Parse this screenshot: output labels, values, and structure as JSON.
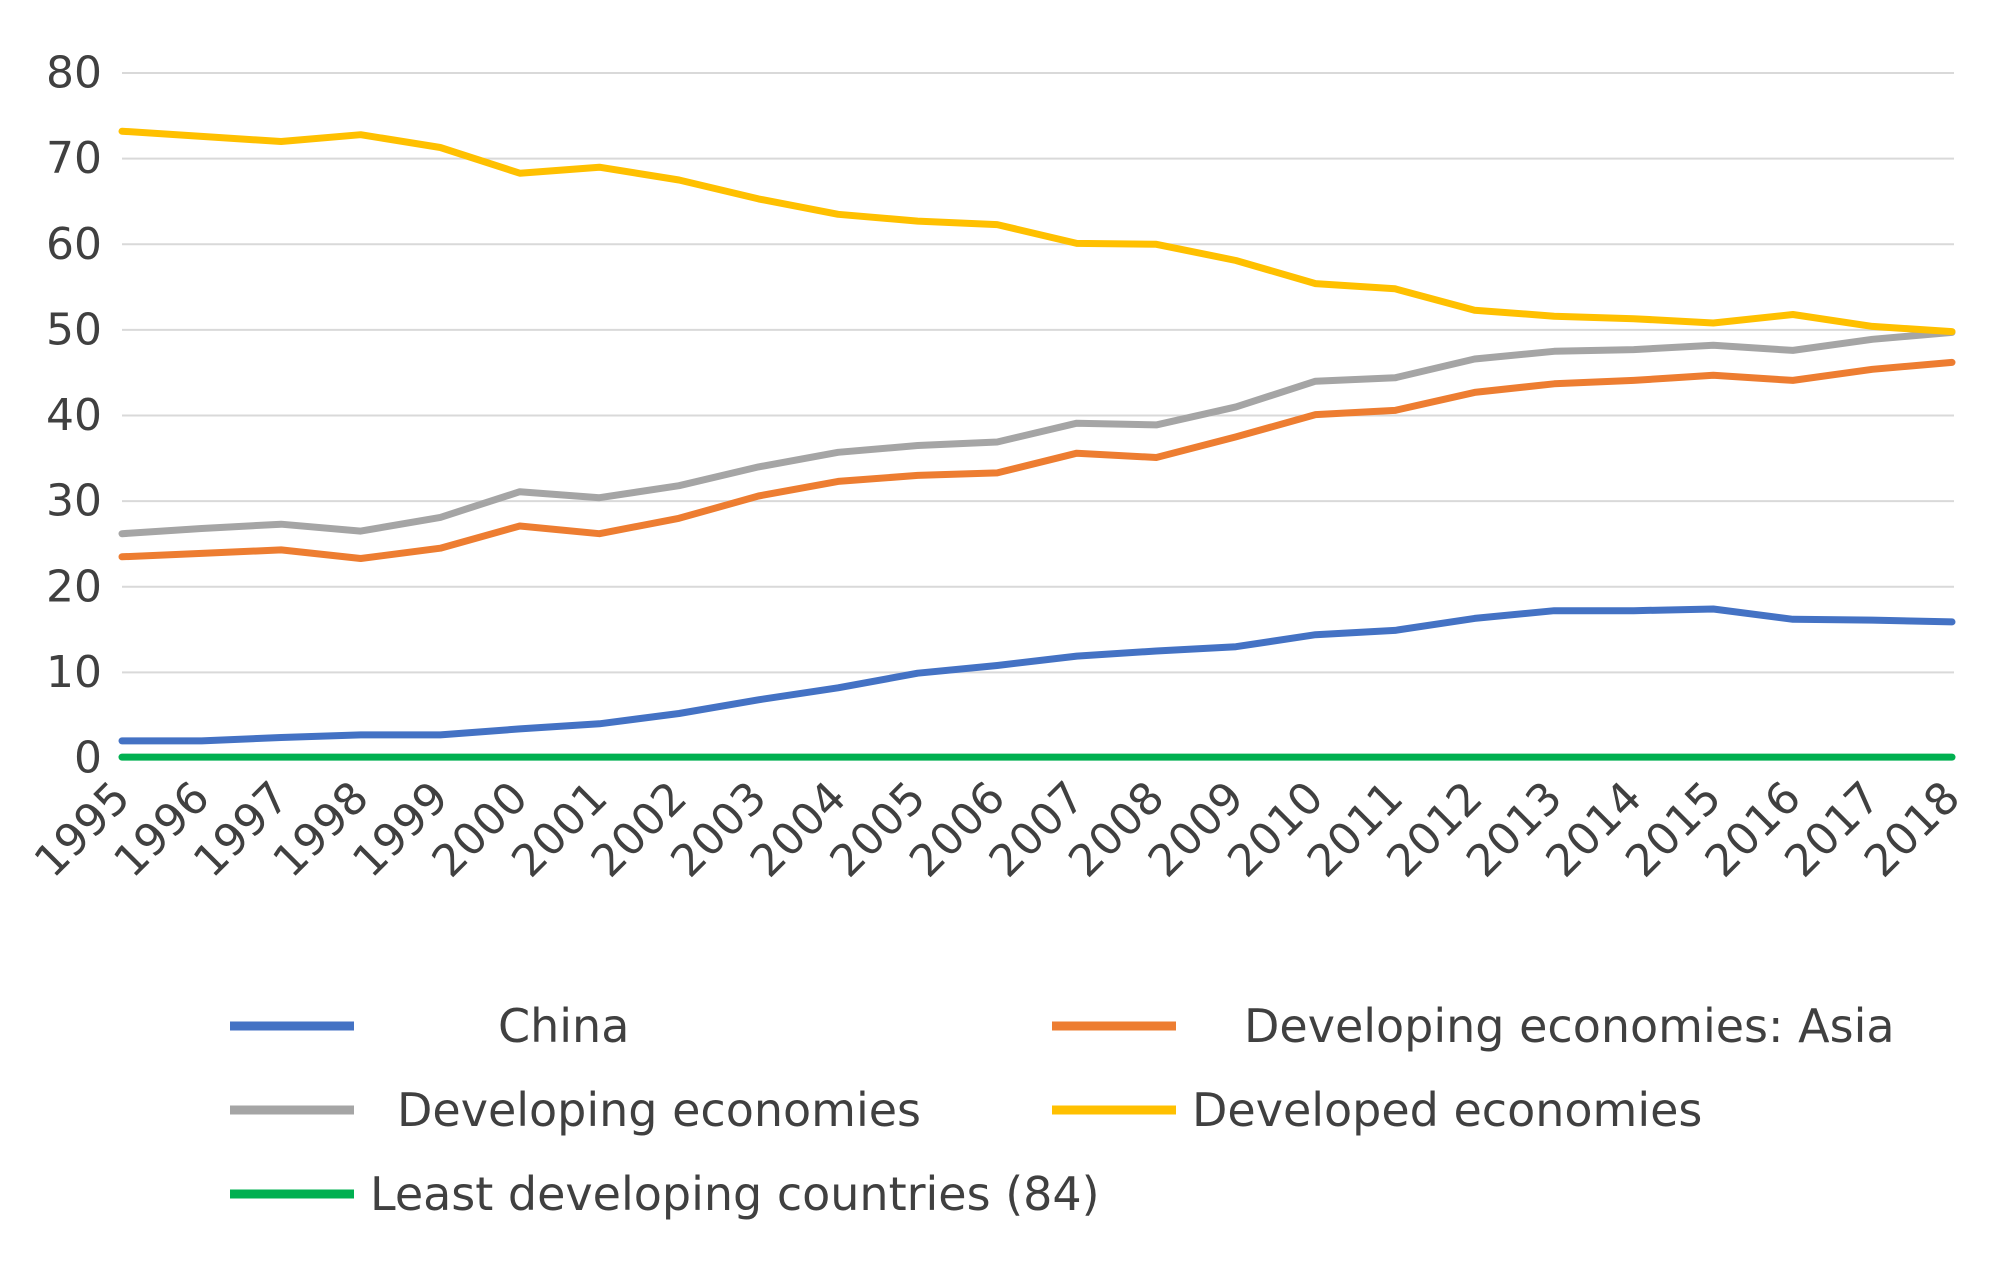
{
  "chart_data": {
    "type": "line",
    "title": "",
    "xlabel": "",
    "ylabel": "",
    "ylim": [
      0,
      80
    ],
    "yticks": [
      0,
      10,
      20,
      30,
      40,
      50,
      60,
      70,
      80
    ],
    "grid": true,
    "legend_position": "bottom",
    "categories": [
      "1995",
      "1996",
      "1997",
      "1998",
      "1999",
      "2000",
      "2001",
      "2002",
      "2003",
      "2004",
      "2005",
      "2006",
      "2007",
      "2008",
      "2009",
      "2010",
      "2011",
      "2012",
      "2013",
      "2014",
      "2015",
      "2016",
      "2017",
      "2018"
    ],
    "series": [
      {
        "name": "China",
        "color": "#4472C4",
        "values": [
          2.0,
          2.0,
          2.4,
          2.7,
          2.7,
          3.4,
          4.0,
          5.2,
          6.8,
          8.2,
          9.9,
          10.8,
          11.9,
          12.5,
          13.0,
          14.4,
          14.9,
          16.3,
          17.2,
          17.2,
          17.4,
          16.2,
          16.1,
          15.9
        ]
      },
      {
        "name": "Developing economies: Asia",
        "color": "#ED7D31",
        "values": [
          23.5,
          23.9,
          24.3,
          23.3,
          24.5,
          27.1,
          26.2,
          28.0,
          30.6,
          32.3,
          33.0,
          33.3,
          35.6,
          35.1,
          37.5,
          40.1,
          40.6,
          42.7,
          43.7,
          44.1,
          44.7,
          44.1,
          45.4,
          46.2
        ]
      },
      {
        "name": "Developing economies",
        "color": "#A5A5A5",
        "values": [
          26.2,
          26.8,
          27.3,
          26.5,
          28.1,
          31.1,
          30.4,
          31.8,
          34.0,
          35.7,
          36.5,
          36.9,
          39.1,
          38.9,
          41.0,
          44.0,
          44.4,
          46.6,
          47.5,
          47.7,
          48.2,
          47.6,
          48.9,
          49.7
        ]
      },
      {
        "name": "Developed economies",
        "color": "#FFC000",
        "values": [
          73.2,
          72.6,
          72.0,
          72.8,
          71.3,
          68.3,
          69.0,
          67.5,
          65.3,
          63.5,
          62.7,
          62.3,
          60.1,
          60.0,
          58.1,
          55.4,
          54.8,
          52.3,
          51.6,
          51.3,
          50.8,
          51.8,
          50.4,
          49.8
        ]
      },
      {
        "name": "Least developing countries (84)",
        "color": "#00B050",
        "values": [
          0.1,
          0.1,
          0.1,
          0.1,
          0.1,
          0.1,
          0.1,
          0.1,
          0.1,
          0.1,
          0.1,
          0.1,
          0.1,
          0.1,
          0.1,
          0.1,
          0.1,
          0.1,
          0.1,
          0.1,
          0.1,
          0.1,
          0.1,
          0.1
        ]
      }
    ]
  }
}
